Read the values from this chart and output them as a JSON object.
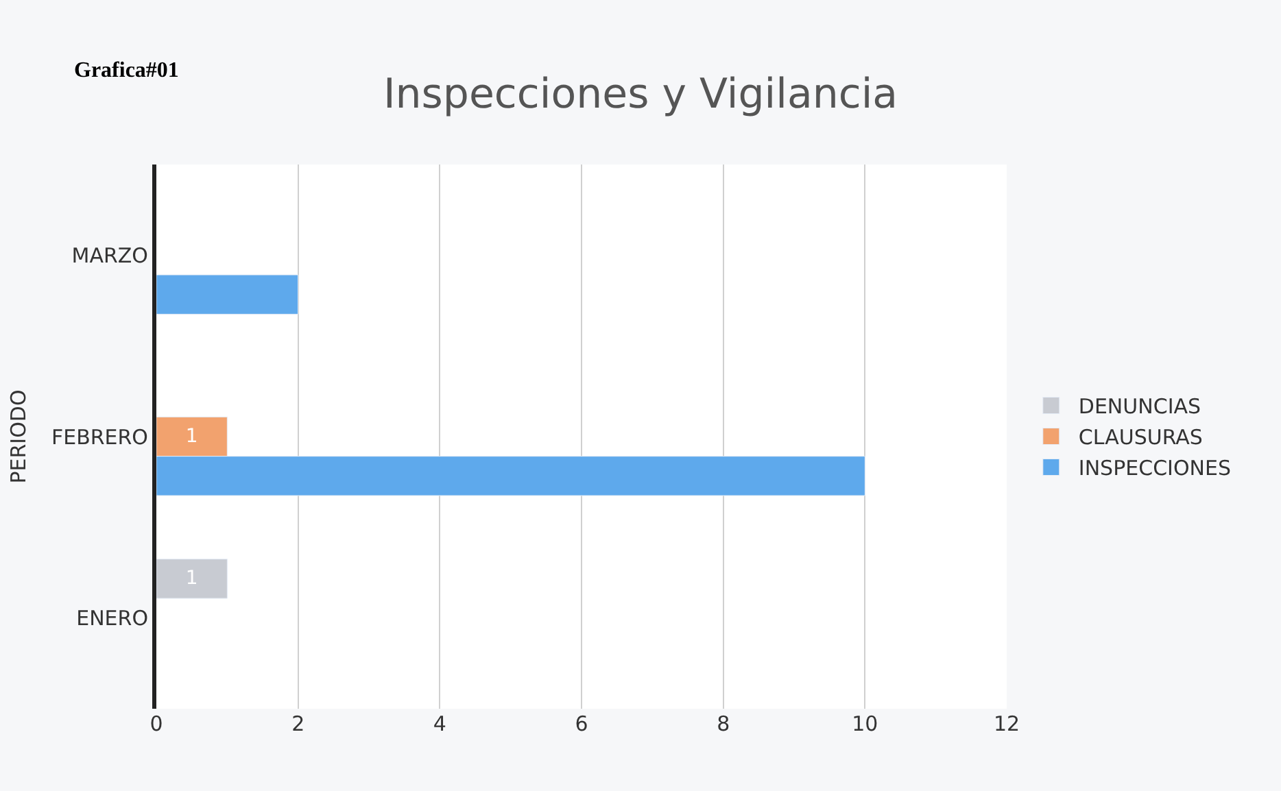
{
  "chart_data": {
    "type": "bar",
    "orientation": "horizontal",
    "title": "Inspecciones y Vigilancia",
    "ylabel": "PERIODO",
    "annotations": [
      "Grafica#01"
    ],
    "categories": [
      "MARZO",
      "FEBRERO",
      "ENERO"
    ],
    "series": [
      {
        "name": "DENUNCIAS",
        "color": "#c8cbd2",
        "values": [
          null,
          null,
          1
        ],
        "value_labels": [
          null,
          null,
          "1"
        ]
      },
      {
        "name": "CLAUSURAS",
        "color": "#f2a26e",
        "values": [
          null,
          1,
          null
        ],
        "value_labels": [
          null,
          "1",
          null
        ]
      },
      {
        "name": "INSPECCIONES",
        "color": "#5ea9ec",
        "values": [
          2,
          10,
          null
        ]
      }
    ],
    "xlim": [
      0,
      12
    ],
    "xticks": [
      0,
      2,
      4,
      6,
      8,
      10,
      12
    ],
    "grid": "x",
    "legend": "right"
  }
}
